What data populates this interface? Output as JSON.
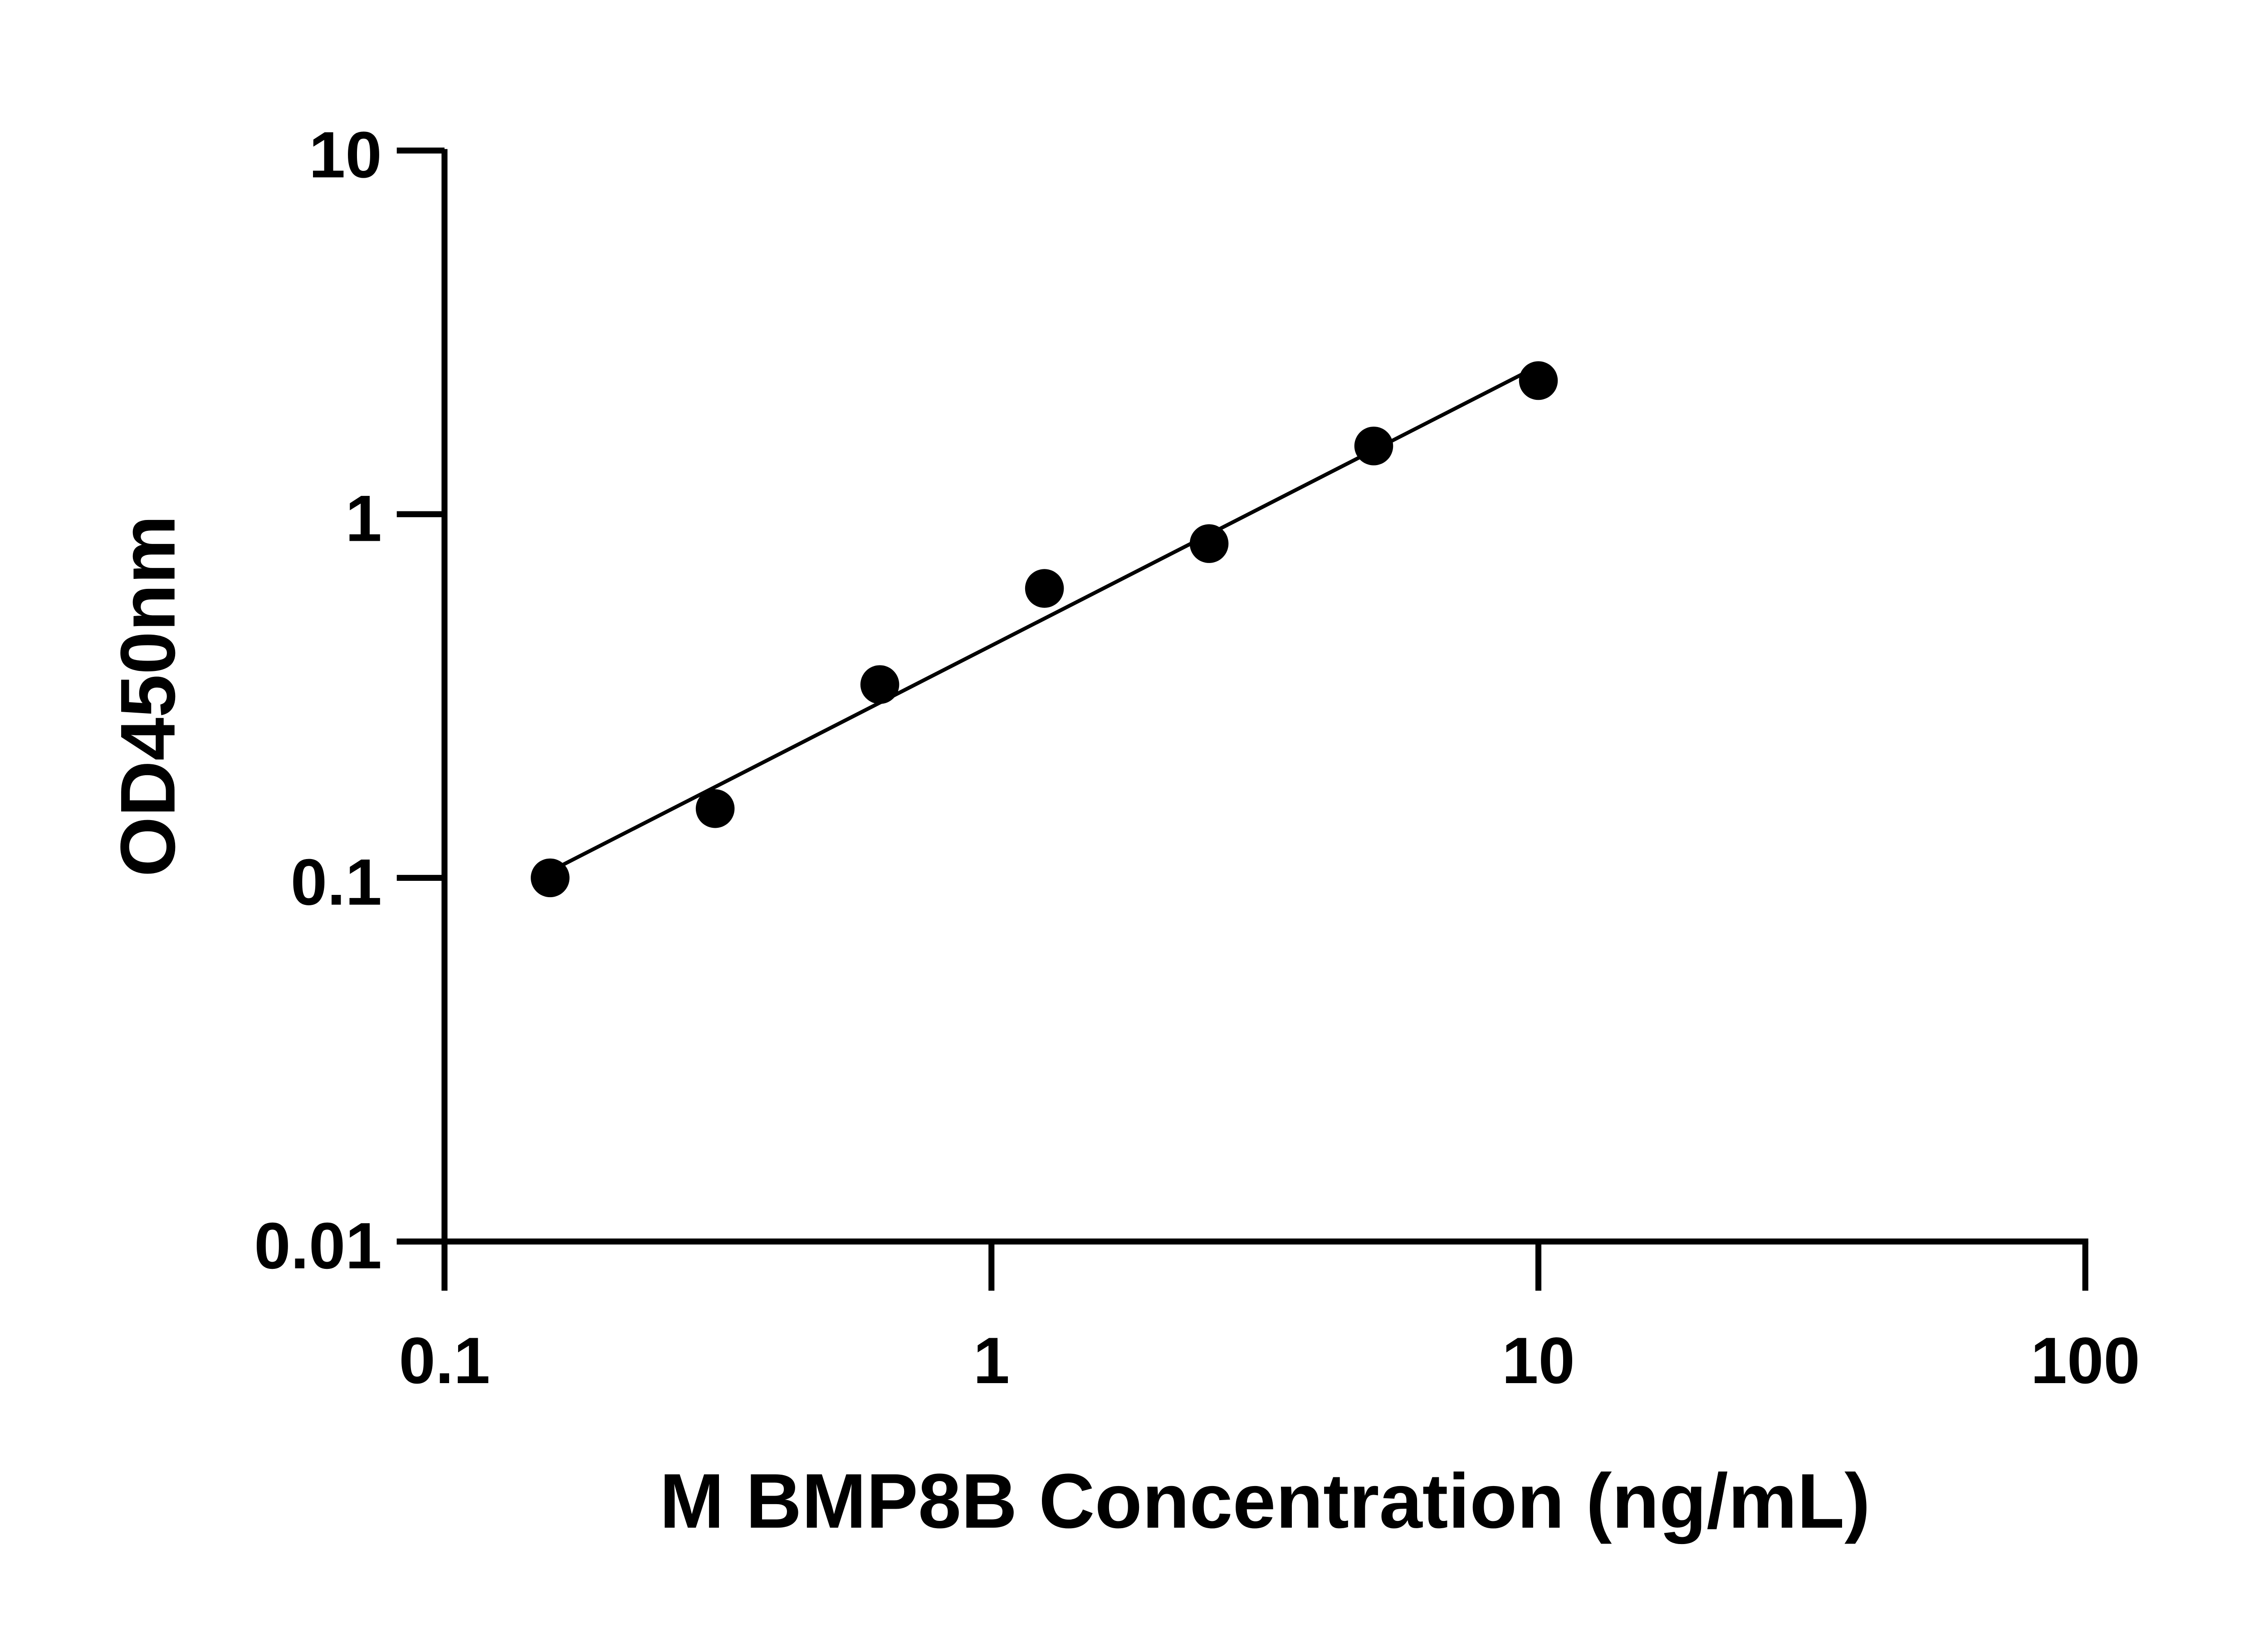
{
  "chart_data": {
    "type": "scatter",
    "title": "",
    "xlabel": "M BMP8B Concentration (ng/mL)",
    "ylabel": "OD450nm",
    "x_scale": "log",
    "y_scale": "log",
    "xlim": [
      0.1,
      100
    ],
    "ylim": [
      0.01,
      10
    ],
    "x_ticks": [
      "0.1",
      "1",
      "10",
      "100"
    ],
    "y_ticks": [
      "0.01",
      "0.1",
      "1",
      "10"
    ],
    "grid": false,
    "fit_line": true,
    "x": [
      0.156,
      0.3125,
      0.625,
      1.25,
      2.5,
      5,
      10
    ],
    "y": [
      0.1,
      0.155,
      0.34,
      0.625,
      0.83,
      1.54,
      2.33
    ],
    "color": "#000000"
  }
}
